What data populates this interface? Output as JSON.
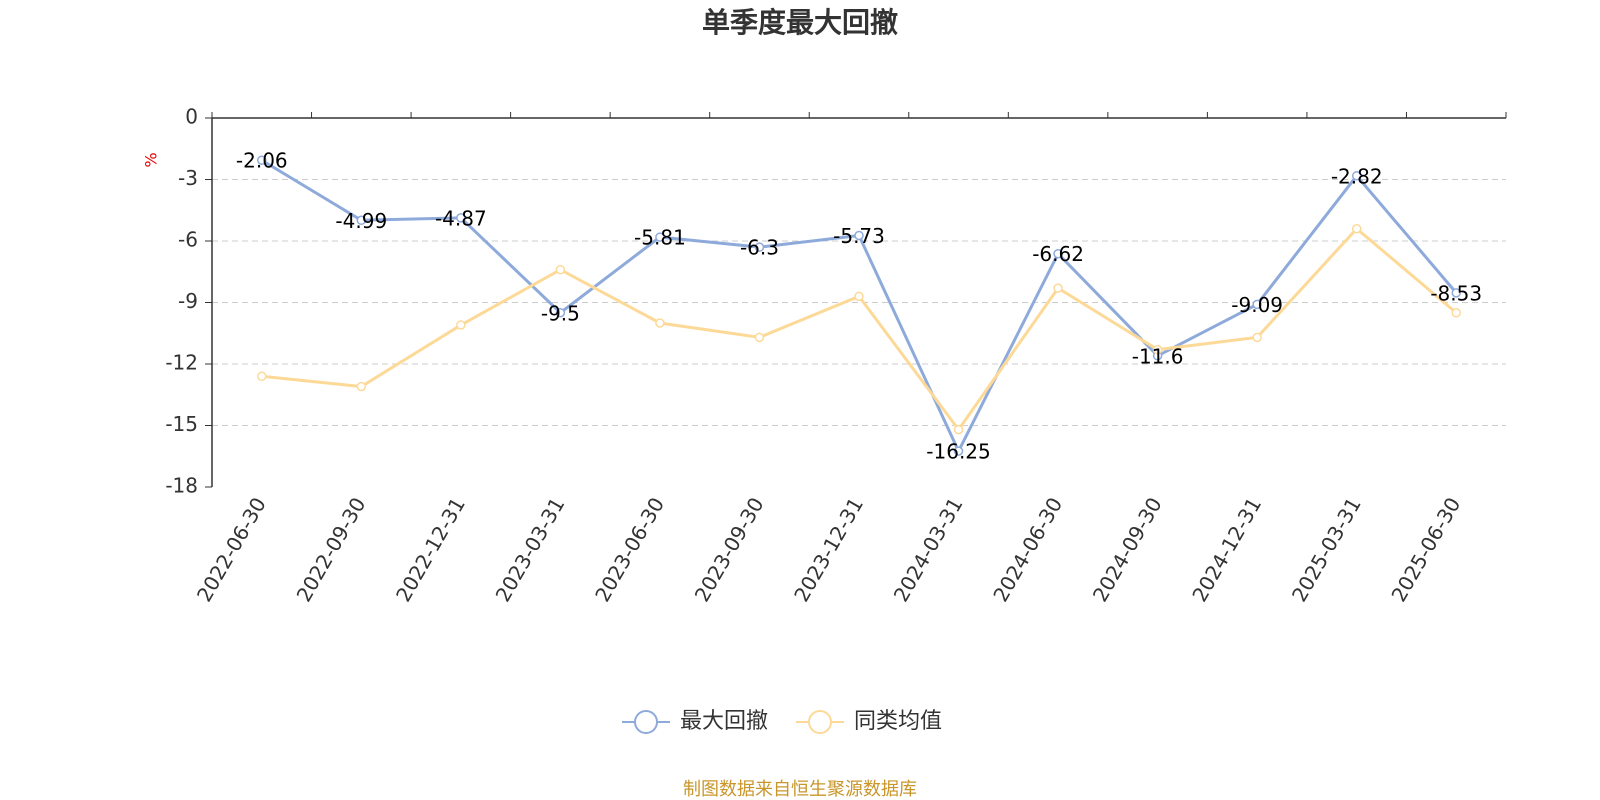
{
  "chart_data": {
    "type": "line",
    "title": "单季度最大回撤",
    "y_label": "%",
    "categories": [
      "2022-06-30",
      "2022-09-30",
      "2022-12-31",
      "2023-03-31",
      "2023-06-30",
      "2023-09-30",
      "2023-12-31",
      "2024-03-31",
      "2024-06-30",
      "2024-09-30",
      "2024-12-31",
      "2025-03-31",
      "2025-06-30"
    ],
    "series": [
      {
        "name": "最大回撤",
        "color": "#8eaadb",
        "values": [
          -2.06,
          -4.99,
          -4.87,
          -9.5,
          -5.81,
          -6.3,
          -5.73,
          -16.25,
          -6.62,
          -11.6,
          -9.09,
          -2.82,
          -8.53
        ],
        "show_labels": true
      },
      {
        "name": "同类均值",
        "color": "#fdd998",
        "values": [
          -12.6,
          -13.1,
          -10.1,
          -7.4,
          -10.0,
          -10.7,
          -8.7,
          -15.2,
          -8.3,
          -11.3,
          -10.7,
          -5.4,
          -9.5
        ],
        "show_labels": false
      }
    ],
    "ylim": [
      -18,
      0
    ],
    "yticks": [
      0,
      -3,
      -6,
      -9,
      -12,
      -15,
      -18
    ],
    "grid": true,
    "legend": "bottom",
    "source": "制图数据来自恒生聚源数据库"
  }
}
